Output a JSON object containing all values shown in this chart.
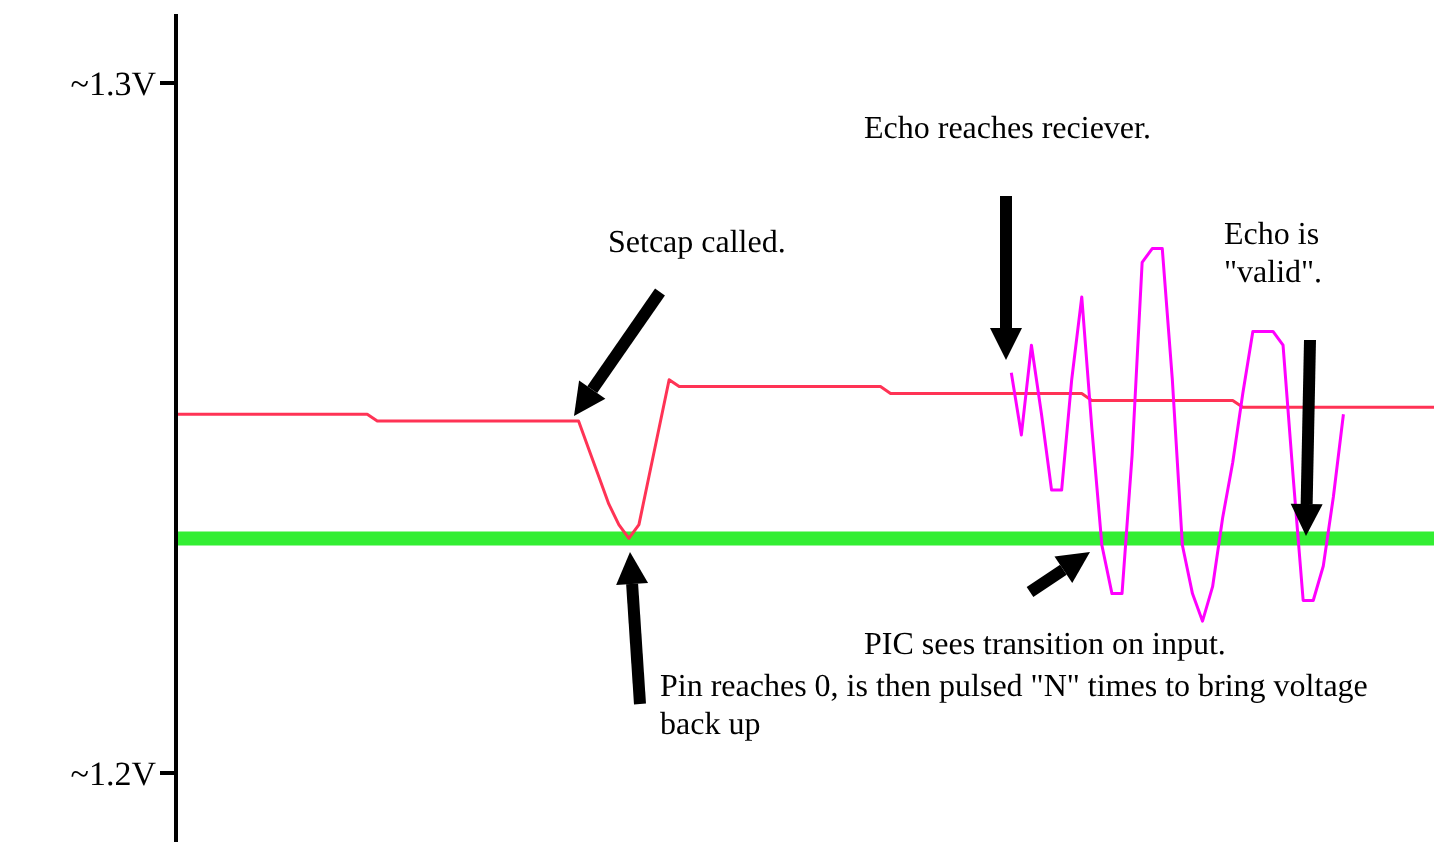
{
  "chart_data": {
    "type": "line",
    "categories": [
      null,
      null,
      null,
      null,
      null,
      null,
      null,
      null,
      null,
      null,
      null,
      null,
      null,
      null,
      null,
      null,
      null,
      null,
      null,
      null,
      null,
      null,
      null,
      null,
      null,
      null,
      null,
      null,
      null,
      null,
      null,
      null,
      null,
      null,
      null,
      null,
      null,
      null,
      null,
      null,
      null,
      null,
      null,
      null,
      null,
      null,
      null,
      null,
      null,
      null,
      null,
      null,
      null,
      null,
      null,
      null,
      null,
      null,
      null,
      null,
      null,
      null,
      null,
      null,
      null,
      null,
      null,
      null,
      null,
      null,
      null,
      null,
      null,
      null,
      null,
      null,
      null,
      null,
      null,
      null,
      null,
      null,
      null,
      null,
      null,
      null,
      null,
      null,
      null,
      null,
      null,
      null,
      null,
      null,
      null,
      null,
      null,
      null,
      null,
      null,
      null,
      null,
      null,
      null,
      null,
      null,
      null,
      null,
      null,
      null,
      null,
      null,
      null,
      null,
      null,
      null,
      null,
      null,
      null,
      null,
      null,
      null,
      null,
      null,
      null,
      null
    ],
    "series": [
      {
        "color": "#ff3355",
        "values": [
          1.252,
          1.252,
          1.252,
          1.252,
          1.252,
          1.252,
          1.252,
          1.252,
          1.252,
          1.252,
          1.252,
          1.252,
          1.252,
          1.252,
          1.252,
          1.252,
          1.252,
          1.252,
          1.252,
          1.252,
          1.251,
          1.251,
          1.251,
          1.251,
          1.251,
          1.251,
          1.251,
          1.251,
          1.251,
          1.251,
          1.251,
          1.251,
          1.251,
          1.251,
          1.251,
          1.251,
          1.251,
          1.251,
          1.251,
          1.251,
          1.251,
          1.247,
          1.243,
          1.239,
          1.236,
          1.234,
          1.236,
          1.243,
          1.25,
          1.257,
          1.256,
          1.256,
          1.256,
          1.256,
          1.256,
          1.256,
          1.256,
          1.256,
          1.256,
          1.256,
          1.256,
          1.256,
          1.256,
          1.256,
          1.256,
          1.256,
          1.256,
          1.256,
          1.256,
          1.256,
          1.256,
          1.255,
          1.255,
          1.255,
          1.255,
          1.255,
          1.255,
          1.255,
          1.255,
          1.255,
          1.255,
          1.255,
          1.255,
          1.255,
          1.255,
          1.255,
          1.255,
          1.255,
          1.255,
          1.255,
          1.255,
          1.254,
          1.254,
          1.254,
          1.254,
          1.254,
          1.254,
          1.254,
          1.254,
          1.254,
          1.254,
          1.254,
          1.254,
          1.254,
          1.254,
          1.254,
          1.253,
          1.253,
          1.253,
          1.253,
          1.253,
          1.253,
          1.253,
          1.253,
          1.253,
          1.253,
          1.253,
          1.253,
          1.253,
          1.253,
          1.253,
          1.253,
          1.253,
          1.253,
          1.253,
          1.253
        ]
      },
      {
        "color": "#ff00ff",
        "values": [
          null,
          null,
          null,
          null,
          null,
          null,
          null,
          null,
          null,
          null,
          null,
          null,
          null,
          null,
          null,
          null,
          null,
          null,
          null,
          null,
          null,
          null,
          null,
          null,
          null,
          null,
          null,
          null,
          null,
          null,
          null,
          null,
          null,
          null,
          null,
          null,
          null,
          null,
          null,
          null,
          null,
          null,
          null,
          null,
          null,
          null,
          null,
          null,
          null,
          null,
          null,
          null,
          null,
          null,
          null,
          null,
          null,
          null,
          null,
          null,
          null,
          null,
          null,
          null,
          null,
          null,
          null,
          null,
          null,
          null,
          null,
          null,
          null,
          null,
          null,
          null,
          null,
          null,
          null,
          null,
          null,
          null,
          null,
          1.258,
          1.249,
          1.262,
          1.252,
          1.241,
          1.241,
          1.257,
          1.269,
          1.25,
          1.233,
          1.226,
          1.226,
          1.246,
          1.274,
          1.276,
          1.276,
          1.257,
          1.233,
          1.226,
          1.222,
          1.227,
          1.237,
          1.245,
          1.255,
          1.264,
          1.264,
          1.264,
          1.262,
          1.243,
          1.225,
          1.225,
          1.23,
          1.24,
          1.252,
          null,
          null,
          null,
          null,
          null,
          null,
          null,
          null,
          null
        ]
      }
    ],
    "ylim": [
      1.19,
      1.31
    ],
    "yticks": [
      {
        "value": 1.3,
        "label": "~1.3V"
      },
      {
        "value": 1.2,
        "label": "~1.2V"
      }
    ],
    "ref_lines": [
      {
        "axis": "y",
        "value": 1.234,
        "color": "#33ee33"
      }
    ],
    "tick_labels": "y",
    "annotations": [
      "Setcap called.",
      "Echo reaches reciever.",
      "Echo is \"valid\".",
      "PIC sees transition on input.",
      "Pin reaches 0, is then pulsed \"N\" times to bring voltage back up"
    ]
  }
}
